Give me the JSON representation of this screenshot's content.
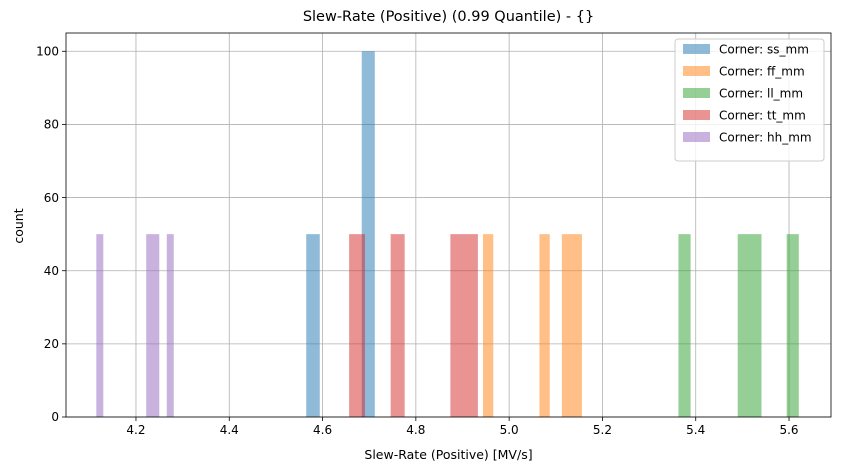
{
  "chart_data": {
    "type": "bar",
    "title": "Slew-Rate (Positive) (0.99 Quantile) - {}",
    "xlabel": "Slew-Rate (Positive) [MV/s]",
    "ylabel": "count",
    "xlim": [
      4.05,
      5.69
    ],
    "ylim": [
      0,
      105
    ],
    "xticks": [
      4.2,
      4.4,
      4.6,
      4.8,
      5.0,
      5.2,
      5.4,
      5.6
    ],
    "yticks": [
      0,
      20,
      40,
      60,
      80,
      100
    ],
    "xtick_labels": [
      "4.2",
      "4.4",
      "4.6",
      "4.8",
      "5.0",
      "5.2",
      "5.4",
      "5.6"
    ],
    "ytick_labels": [
      "0",
      "20",
      "40",
      "60",
      "80",
      "100"
    ],
    "grid": true,
    "legend_position": "top-right",
    "bar_alpha": 0.5,
    "series": [
      {
        "name": "Corner: ss_mm",
        "color": "#1f77b4",
        "bins": [
          {
            "x0": 4.565,
            "x1": 4.594,
            "count": 50
          },
          {
            "x0": 4.684,
            "x1": 4.712,
            "count": 100
          }
        ]
      },
      {
        "name": "Corner: ff_mm",
        "color": "#ff7f0e",
        "bins": [
          {
            "x0": 4.944,
            "x1": 4.966,
            "count": 50
          },
          {
            "x0": 5.065,
            "x1": 5.087,
            "count": 50
          },
          {
            "x0": 5.113,
            "x1": 5.156,
            "count": 50
          }
        ]
      },
      {
        "name": "Corner: ll_mm",
        "color": "#2ca02c",
        "bins": [
          {
            "x0": 5.363,
            "x1": 5.389,
            "count": 50
          },
          {
            "x0": 5.49,
            "x1": 5.541,
            "count": 50
          },
          {
            "x0": 5.595,
            "x1": 5.621,
            "count": 50
          }
        ]
      },
      {
        "name": "Corner: tt_mm",
        "color": "#d62728",
        "bins": [
          {
            "x0": 4.657,
            "x1": 4.691,
            "count": 50
          },
          {
            "x0": 4.746,
            "x1": 4.776,
            "count": 50
          },
          {
            "x0": 4.874,
            "x1": 4.933,
            "count": 50
          }
        ]
      },
      {
        "name": "Corner: hh_mm",
        "color": "#9467bd",
        "bins": [
          {
            "x0": 4.115,
            "x1": 4.13,
            "count": 50
          },
          {
            "x0": 4.222,
            "x1": 4.25,
            "count": 50
          },
          {
            "x0": 4.266,
            "x1": 4.281,
            "count": 50
          }
        ]
      }
    ]
  }
}
